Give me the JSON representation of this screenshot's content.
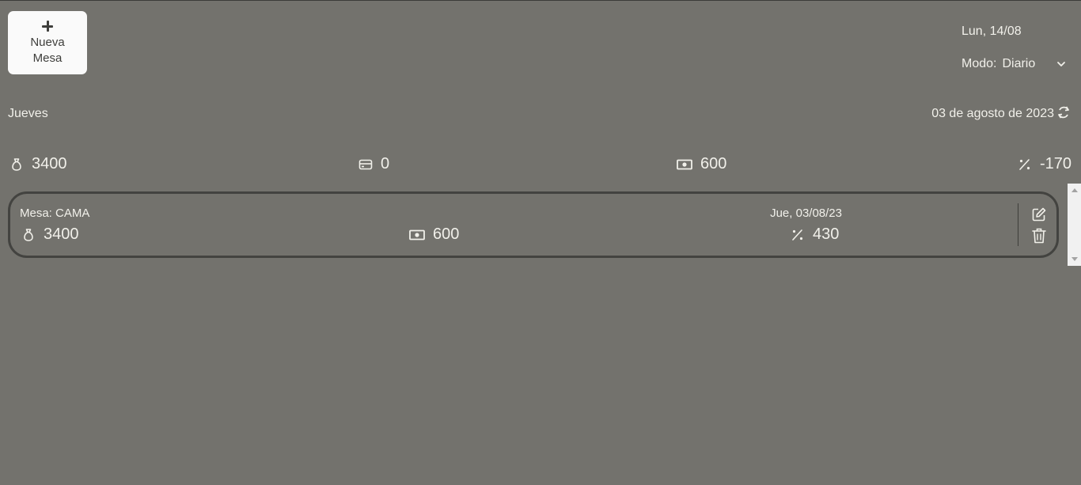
{
  "toolbar": {
    "new_table_line1": "Nueva",
    "new_table_line2": "Mesa"
  },
  "header": {
    "current_date": "Lun, 14/08",
    "mode_label": "Modo:",
    "mode_value": "Diario"
  },
  "day": {
    "weekday": "Jueves",
    "full_date": "03 de agosto de 2023"
  },
  "totals": {
    "bag": "3400",
    "card": "0",
    "cash": "600",
    "percent": "-170"
  },
  "tables": [
    {
      "mesa": "Mesa: CAMA",
      "date": "Jue, 03/08/23",
      "bag": "3400",
      "cash": "600",
      "percent": "430"
    }
  ],
  "icons": {
    "bag": "money-bag-icon",
    "card": "credit-card-icon",
    "cash": "cash-icon",
    "percent": "percent-icon",
    "refresh": "refresh-icon",
    "chevron": "chevron-down-icon",
    "edit": "edit-icon",
    "trash": "trash-icon"
  },
  "colors": {
    "background": "#73726d",
    "button_bg": "#fafafa",
    "text": "#f1f0ea",
    "card_border": "#434340"
  }
}
